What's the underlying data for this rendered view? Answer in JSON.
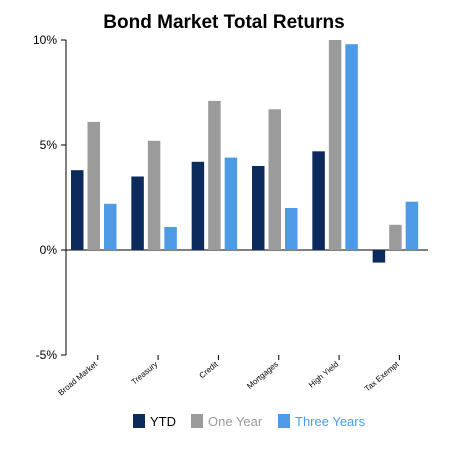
{
  "chart_data": {
    "type": "bar",
    "title": "Bond Market Total Returns",
    "categories": [
      "Broad Market",
      "Treasury",
      "Credit",
      "Mortgages",
      "High Yield",
      "Tax Exempt"
    ],
    "series": [
      {
        "name": "YTD",
        "color": "#0d2a5c",
        "values": [
          3.8,
          3.5,
          4.2,
          4.0,
          4.7,
          -0.6
        ]
      },
      {
        "name": "One Year",
        "color": "#9b9b9b",
        "values": [
          6.1,
          5.2,
          7.1,
          6.7,
          10.0,
          1.2
        ]
      },
      {
        "name": "Three Years",
        "color": "#4f9ae6",
        "values": [
          2.2,
          1.1,
          4.4,
          2.0,
          9.8,
          2.3
        ]
      }
    ],
    "y_ticks": [
      "10%",
      "5%",
      "0%",
      "-5%"
    ],
    "y_tick_values": [
      10,
      5,
      0,
      -5
    ],
    "ylim": [
      -5,
      10
    ],
    "grid": false,
    "legend_position": "bottom"
  }
}
